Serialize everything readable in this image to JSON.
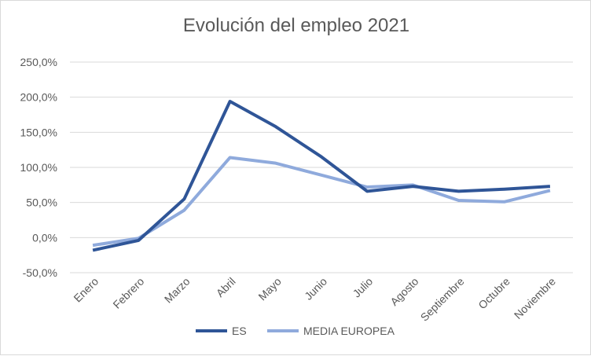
{
  "chart_data": {
    "type": "line",
    "title": "Evolución del empleo 2021",
    "xlabel": "",
    "ylabel": "",
    "categories": [
      "Enero",
      "Febrero",
      "Marzo",
      "Abril",
      "Mayo",
      "Junio",
      "Julio",
      "Agosto",
      "Septiembre",
      "Octubre",
      "Noviembre"
    ],
    "yticks": [
      "-50,0%",
      "0,0%",
      "50,0%",
      "100,0%",
      "150,0%",
      "200,0%",
      "250,0%"
    ],
    "ylim": [
      -50,
      250
    ],
    "grid": true,
    "legend_position": "bottom",
    "series": [
      {
        "name": "ES",
        "color": "#2F5597",
        "values": [
          -18,
          -4,
          55,
          194,
          158,
          115,
          66,
          73,
          66,
          69,
          73
        ]
      },
      {
        "name": "MEDIA EUROPEA",
        "color": "#8FAADC",
        "values": [
          -11,
          -1,
          39,
          114,
          106,
          89,
          72,
          75,
          53,
          51,
          67
        ]
      }
    ]
  }
}
